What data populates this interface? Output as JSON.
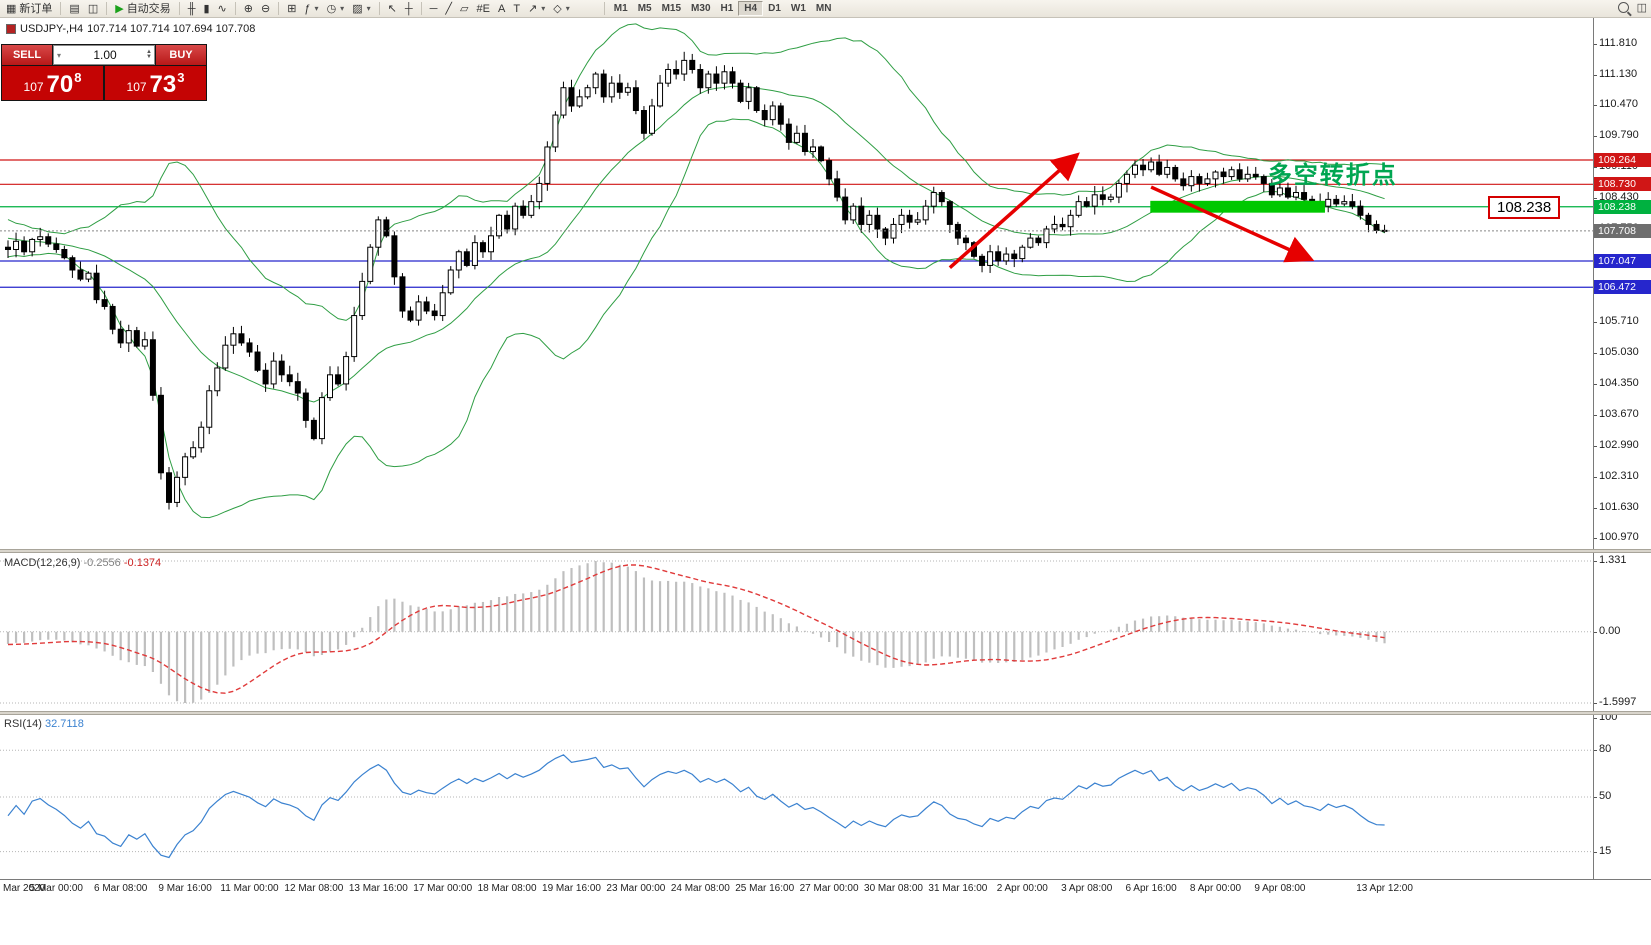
{
  "toolbar": {
    "dropdown_caret": "▾",
    "groups": [
      {
        "items": [
          {
            "name": "new-order",
            "glyph": "▦",
            "label": "新订单"
          }
        ]
      },
      {
        "items": [
          {
            "name": "charts",
            "glyph": "▤"
          },
          {
            "name": "profiles",
            "glyph": "◫"
          }
        ]
      },
      {
        "items": [
          {
            "name": "autotrading",
            "glyph": "▶",
            "glyph_color": "#1ba11b",
            "label": "自动交易"
          }
        ]
      },
      {
        "items": [
          {
            "name": "bar-chart",
            "glyph": "╫"
          },
          {
            "name": "candlestick-chart",
            "glyph": "▮"
          },
          {
            "name": "line-chart",
            "glyph": "∿"
          }
        ]
      },
      {
        "items": [
          {
            "name": "zoom-in",
            "glyph": "⊕"
          },
          {
            "name": "zoom-out",
            "glyph": "⊖"
          }
        ]
      },
      {
        "items": [
          {
            "name": "tile-windows",
            "glyph": "⊞"
          },
          {
            "name": "indicators",
            "glyph": "ƒ",
            "dropdown": true
          },
          {
            "name": "periods",
            "glyph": "◷",
            "dropdown": true
          },
          {
            "name": "templates",
            "glyph": "▨",
            "dropdown": true
          }
        ]
      },
      {
        "items": [
          {
            "name": "cursor",
            "glyph": "↖"
          },
          {
            "name": "crosshair",
            "glyph": "┼"
          }
        ]
      },
      {
        "items": [
          {
            "name": "horizontal-line",
            "glyph": "─"
          },
          {
            "name": "trendline",
            "glyph": "╱"
          },
          {
            "name": "equidistant-channel",
            "glyph": "▱"
          },
          {
            "name": "fibonacci",
            "glyph": "#E"
          },
          {
            "name": "text",
            "glyph": "A"
          },
          {
            "name": "text-label",
            "glyph": "T"
          },
          {
            "name": "arrows",
            "glyph": "↗",
            "dropdown": true
          },
          {
            "name": "shapes",
            "glyph": "◇",
            "dropdown": true
          }
        ]
      }
    ],
    "timeframes": [
      "M1",
      "M5",
      "M15",
      "M30",
      "H1",
      "H4",
      "D1",
      "W1",
      "MN"
    ],
    "active_timeframe": "H4"
  },
  "chart_header": {
    "symbol": "USDJPY-,H4",
    "ohlc": "107.714 107.714 107.694 107.708"
  },
  "trade_panel": {
    "sell_label": "SELL",
    "buy_label": "BUY",
    "volume": "1.00",
    "sell_price": {
      "big": "107",
      "pips": "70",
      "frac": "8"
    },
    "buy_price": {
      "big": "107",
      "pips": "73",
      "frac": "3"
    }
  },
  "chart_data": {
    "type": "candlestick",
    "symbol": "USDJPY-",
    "timeframe": "H4",
    "price_axis_ticks": [
      "111.810",
      "111.130",
      "110.470",
      "109.790",
      "109.110",
      "108.430",
      "107.750",
      "107.070",
      "106.390",
      "105.710",
      "105.030",
      "104.350",
      "103.670",
      "102.990",
      "102.310",
      "101.630",
      "100.970"
    ],
    "price_tags": [
      {
        "text": "109.264",
        "bg": "#d01616"
      },
      {
        "text": "108.730",
        "bg": "#d01616"
      },
      {
        "text": "108.238",
        "bg": "#00b140"
      },
      {
        "text": "107.708",
        "bg": "#6e6e6e"
      },
      {
        "text": "107.047",
        "bg": "#2626cc"
      },
      {
        "text": "106.472",
        "bg": "#2626cc"
      }
    ],
    "hlines": [
      {
        "price": 109.264,
        "color": "#d01616"
      },
      {
        "price": 108.73,
        "color": "#d01616"
      },
      {
        "price": 108.238,
        "color": "#00b140"
      },
      {
        "price": 107.047,
        "color": "#2626cc"
      },
      {
        "price": 106.472,
        "color": "#2626cc"
      }
    ],
    "bid_price": 107.708,
    "first_open": 107.35,
    "warmup_closes": [
      108.4,
      108.3,
      108.45,
      108.2,
      108.1,
      108.2,
      107.9,
      108.0,
      107.8,
      107.9,
      107.7,
      107.8,
      107.6,
      107.7,
      107.5,
      107.6,
      107.45,
      107.55,
      107.4,
      107.5,
      107.35,
      107.45,
      107.3,
      107.4,
      107.3,
      107.35
    ],
    "closes": [
      107.3,
      107.48,
      107.25,
      107.52,
      107.58,
      107.42,
      107.3,
      107.12,
      106.85,
      106.65,
      106.78,
      106.2,
      106.05,
      105.55,
      105.25,
      105.52,
      105.18,
      105.32,
      104.1,
      102.4,
      101.75,
      102.3,
      102.75,
      102.95,
      103.4,
      104.2,
      104.7,
      105.2,
      105.45,
      105.25,
      105.05,
      104.65,
      104.35,
      104.85,
      104.55,
      104.4,
      104.15,
      103.55,
      103.15,
      104.05,
      104.55,
      104.35,
      104.95,
      105.85,
      106.6,
      107.35,
      107.95,
      107.6,
      106.7,
      105.95,
      105.75,
      106.15,
      105.95,
      105.85,
      106.35,
      106.85,
      107.25,
      106.95,
      107.45,
      107.25,
      107.6,
      108.05,
      107.75,
      108.25,
      108.05,
      108.35,
      108.75,
      109.55,
      110.25,
      110.85,
      110.45,
      110.65,
      110.85,
      111.15,
      110.65,
      110.95,
      110.75,
      110.85,
      110.35,
      109.85,
      110.45,
      110.95,
      111.25,
      111.15,
      111.45,
      111.25,
      110.85,
      111.15,
      110.95,
      111.2,
      110.95,
      110.55,
      110.85,
      110.35,
      110.15,
      110.45,
      110.05,
      109.65,
      109.85,
      109.45,
      109.55,
      109.25,
      108.85,
      108.45,
      107.95,
      108.25,
      107.85,
      108.05,
      107.75,
      107.55,
      107.85,
      108.05,
      107.9,
      107.95,
      108.25,
      108.55,
      108.35,
      107.85,
      107.55,
      107.45,
      107.15,
      106.95,
      107.25,
      107.05,
      107.2,
      107.1,
      107.35,
      107.55,
      107.45,
      107.75,
      107.85,
      107.8,
      108.05,
      108.35,
      108.25,
      108.5,
      108.4,
      108.45,
      108.75,
      108.95,
      109.15,
      109.05,
      109.22,
      108.95,
      109.1,
      108.85,
      108.7,
      108.9,
      108.75,
      108.85,
      109.0,
      108.9,
      109.05,
      108.85,
      108.95,
      108.9,
      108.75,
      108.5,
      108.65,
      108.45,
      108.55,
      108.4,
      108.35,
      108.25,
      108.4,
      108.3,
      108.35,
      108.25,
      108.05,
      107.85,
      107.72,
      107.708
    ],
    "bollinger": {
      "period": 20,
      "deviation": 2,
      "color": "#2f9e44"
    },
    "macd": {
      "name": "MACD(12,26,9)",
      "value_main": "-0.2556",
      "value_signal": "-0.1374",
      "fast": 12,
      "slow": 26,
      "signal": 9,
      "scale_labels": [
        "1.331",
        "0.00",
        "-1.5997"
      ],
      "histogram_color": "#bfbfbf",
      "signal_color": "#e03a3a"
    },
    "rsi": {
      "name": "RSI(14)",
      "value": "32.7118",
      "period": 14,
      "levels": [
        80,
        50,
        15
      ],
      "top_label": "100",
      "color": "#3b82d0"
    },
    "time_labels": [
      [
        "Mar 2020",
        0
      ],
      [
        "5 Mar 00:00",
        6
      ],
      [
        "6 Mar 08:00",
        14
      ],
      [
        "9 Mar 16:00",
        22
      ],
      [
        "11 Mar 00:00",
        30
      ],
      [
        "12 Mar 08:00",
        38
      ],
      [
        "13 Mar 16:00",
        46
      ],
      [
        "17 Mar 00:00",
        54
      ],
      [
        "18 Mar 08:00",
        62
      ],
      [
        "19 Mar 16:00",
        70
      ],
      [
        "23 Mar 00:00",
        78
      ],
      [
        "24 Mar 08:00",
        86
      ],
      [
        "25 Mar 16:00",
        94
      ],
      [
        "27 Mar 00:00",
        102
      ],
      [
        "30 Mar 08:00",
        110
      ],
      [
        "31 Mar 16:00",
        118
      ],
      [
        "2 Apr 00:00",
        126
      ],
      [
        "3 Apr 08:00",
        134
      ],
      [
        "6 Apr 16:00",
        142
      ],
      [
        "8 Apr 00:00",
        150
      ],
      [
        "9 Apr 08:00",
        158
      ],
      [
        "13 Apr 12:00",
        171
      ]
    ],
    "annotations": {
      "up_trend_arrow": {
        "from_bar": 117,
        "from_price": 106.9,
        "to_bar": 132.5,
        "to_price": 109.33,
        "color": "#e60000"
      },
      "down_trend_arrow": {
        "from_bar": 142,
        "from_price": 108.67,
        "to_bar": 161.5,
        "to_price": 107.11,
        "color": "#e60000"
      },
      "zone_rect": {
        "from_bar": 141.9,
        "to_bar": 163.6,
        "price_top": 108.368,
        "price_bottom": 108.108,
        "color": "#00c800"
      },
      "note_text": {
        "text": "多空转折点",
        "bar": 156.5,
        "price": 109.33,
        "color": "#00a651"
      },
      "price_label_box": {
        "text": "108.238",
        "price": 108.238,
        "border_color": "#d40000"
      }
    }
  }
}
